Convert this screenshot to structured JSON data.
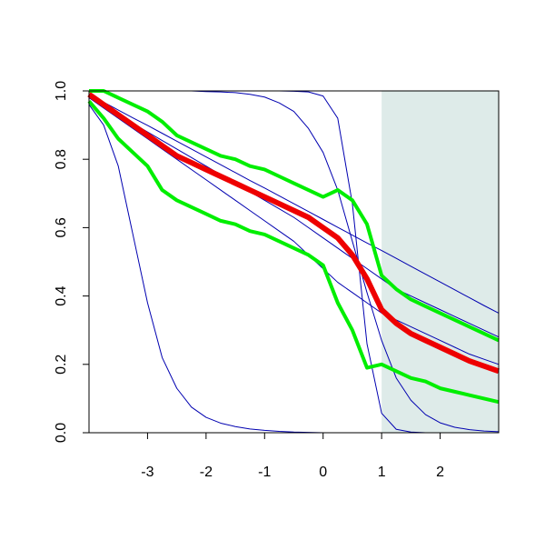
{
  "chart_data": {
    "type": "line",
    "x": [
      -4,
      -3.75,
      -3.5,
      -3.25,
      -3,
      -2.75,
      -2.5,
      -2.25,
      -2,
      -1.75,
      -1.5,
      -1.25,
      -1,
      -0.75,
      -0.5,
      -0.25,
      0,
      0.25,
      0.5,
      0.75,
      1,
      1.25,
      1.5,
      1.75,
      2,
      2.25,
      2.5,
      2.75,
      3
    ],
    "xlim": [
      -4,
      3
    ],
    "xticks": [
      -3,
      -2,
      -1,
      0,
      1,
      2
    ],
    "ylim": [
      0,
      1
    ],
    "yticks": [
      {
        "value": 0,
        "label": "0.0"
      },
      0.2,
      0.4,
      0.6,
      0.8,
      {
        "value": 1,
        "label": "1.0"
      }
    ],
    "shaded_region": {
      "xlim": [
        1,
        3
      ],
      "color": "#deebe9"
    },
    "series": [
      {
        "color": "#0000b0",
        "line_width": 1,
        "values": [
          0.96,
          0.9,
          0.78,
          0.58,
          0.38,
          0.22,
          0.13,
          0.075,
          0.045,
          0.028,
          0.018,
          0.011,
          0.007,
          0.004,
          0.002,
          0.001,
          0,
          0,
          0,
          0,
          0,
          0,
          0,
          0,
          0,
          0,
          0,
          0,
          0
        ]
      },
      {
        "color": "#0000b0",
        "line_width": 1,
        "values": [
          1,
          1,
          1,
          1,
          1,
          1,
          1,
          1,
          1,
          1,
          1,
          1,
          1,
          1,
          0.999,
          0.997,
          0.985,
          0.92,
          0.67,
          0.26,
          0.057,
          0.01,
          0.002,
          0,
          0,
          0,
          0,
          0,
          0
        ]
      },
      {
        "color": "#0000b0",
        "line_width": 1,
        "values": [
          1,
          1,
          1,
          1,
          1,
          1,
          1,
          1,
          0.998,
          0.997,
          0.995,
          0.99,
          0.982,
          0.965,
          0.94,
          0.89,
          0.82,
          0.71,
          0.56,
          0.41,
          0.27,
          0.16,
          0.095,
          0.053,
          0.029,
          0.016,
          0.009,
          0.005,
          0.003
        ]
      },
      {
        "color": "#0000b0",
        "line_width": 1,
        "values": [
          0.99,
          0.967,
          0.944,
          0.921,
          0.899,
          0.876,
          0.853,
          0.83,
          0.807,
          0.784,
          0.761,
          0.738,
          0.716,
          0.693,
          0.67,
          0.647,
          0.624,
          0.601,
          0.578,
          0.555,
          0.533,
          0.51,
          0.487,
          0.464,
          0.441,
          0.418,
          0.395,
          0.372,
          0.35
        ]
      },
      {
        "color": "#0000b0",
        "line_width": 1,
        "values": [
          0.98,
          0.955,
          0.93,
          0.905,
          0.88,
          0.855,
          0.83,
          0.805,
          0.78,
          0.755,
          0.73,
          0.705,
          0.68,
          0.655,
          0.63,
          0.6,
          0.57,
          0.54,
          0.51,
          0.48,
          0.45,
          0.42,
          0.4,
          0.38,
          0.36,
          0.34,
          0.32,
          0.3,
          0.28
        ]
      },
      {
        "color": "#0000b0",
        "line_width": 1,
        "values": [
          0.98,
          0.95,
          0.92,
          0.89,
          0.86,
          0.83,
          0.8,
          0.77,
          0.74,
          0.71,
          0.68,
          0.65,
          0.62,
          0.59,
          0.56,
          0.52,
          0.48,
          0.44,
          0.41,
          0.38,
          0.35,
          0.33,
          0.31,
          0.29,
          0.27,
          0.25,
          0.23,
          0.215,
          0.2
        ]
      },
      {
        "color": "#00ee00",
        "line_width": 4,
        "values": [
          1,
          1,
          0.98,
          0.96,
          0.94,
          0.91,
          0.87,
          0.85,
          0.83,
          0.81,
          0.8,
          0.78,
          0.77,
          0.75,
          0.73,
          0.71,
          0.69,
          0.71,
          0.68,
          0.61,
          0.46,
          0.42,
          0.39,
          0.37,
          0.35,
          0.33,
          0.31,
          0.29,
          0.27
        ]
      },
      {
        "color": "#00ee00",
        "line_width": 4,
        "values": [
          0.97,
          0.92,
          0.86,
          0.82,
          0.78,
          0.71,
          0.68,
          0.66,
          0.64,
          0.62,
          0.61,
          0.59,
          0.58,
          0.56,
          0.54,
          0.52,
          0.49,
          0.38,
          0.3,
          0.19,
          0.2,
          0.18,
          0.16,
          0.15,
          0.13,
          0.12,
          0.11,
          0.1,
          0.09
        ]
      },
      {
        "color": "#ee0000",
        "line_width": 6,
        "values": [
          0.99,
          0.96,
          0.93,
          0.9,
          0.87,
          0.84,
          0.81,
          0.79,
          0.77,
          0.75,
          0.73,
          0.71,
          0.69,
          0.67,
          0.65,
          0.63,
          0.6,
          0.57,
          0.52,
          0.45,
          0.36,
          0.32,
          0.29,
          0.27,
          0.25,
          0.23,
          0.21,
          0.195,
          0.18
        ]
      }
    ]
  }
}
